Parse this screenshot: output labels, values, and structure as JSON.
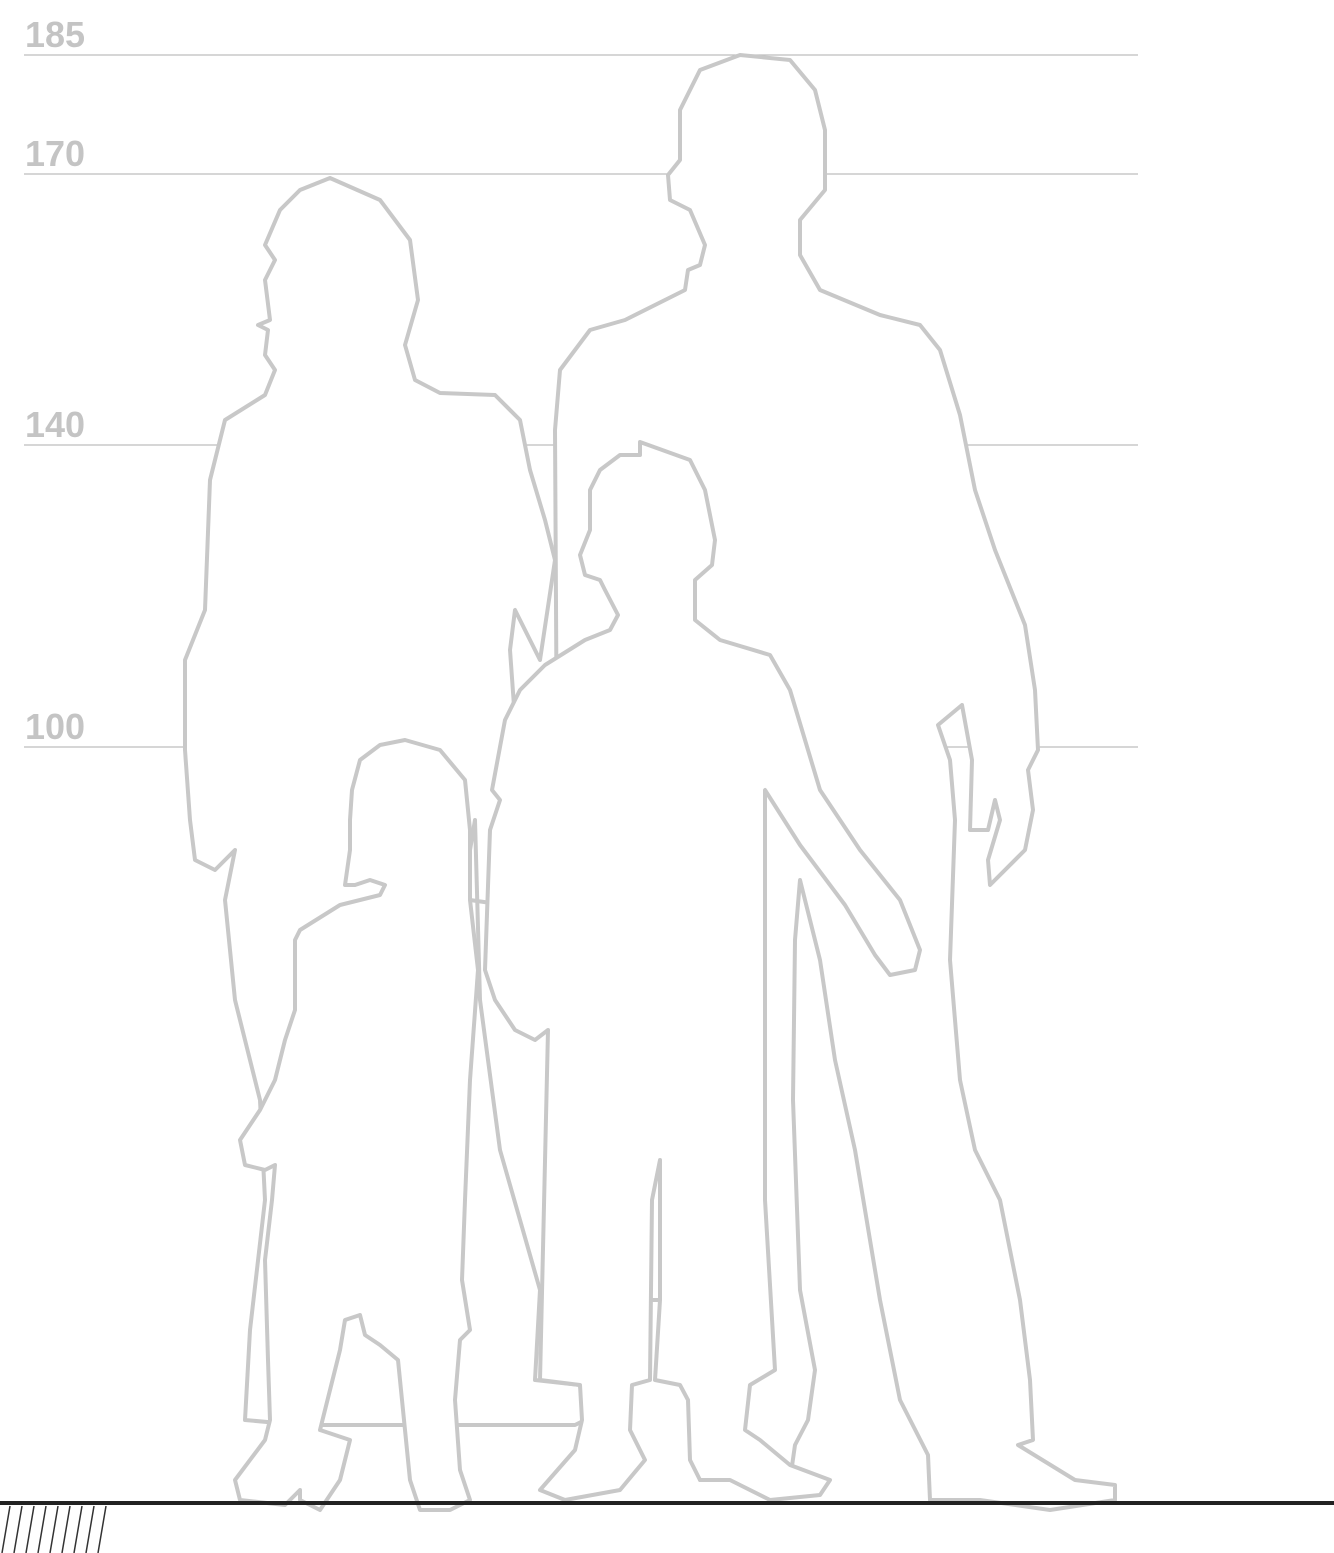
{
  "height_marks": [
    185,
    170,
    140,
    100
  ]
}
